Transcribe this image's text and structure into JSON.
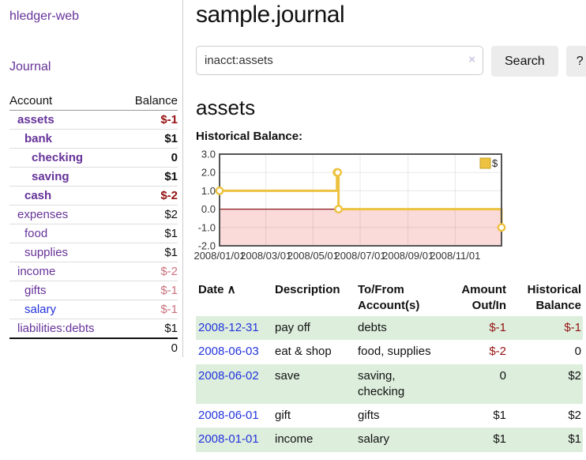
{
  "app_title": "hledger-web",
  "sidebar": {
    "journal_link": "Journal",
    "accounts": {
      "header_account": "Account",
      "header_balance": "Balance",
      "rows": [
        {
          "name": "assets",
          "indent": 0,
          "bold": true,
          "balance": "$-1",
          "balance_class": "neg",
          "link": "purple"
        },
        {
          "name": "bank",
          "indent": 1,
          "bold": true,
          "balance": "$1",
          "balance_class": "",
          "link": "purple"
        },
        {
          "name": "checking",
          "indent": 2,
          "bold": true,
          "balance": "0",
          "balance_class": "",
          "link": "purple"
        },
        {
          "name": "saving",
          "indent": 2,
          "bold": true,
          "balance": "$1",
          "balance_class": "",
          "link": "purple"
        },
        {
          "name": "cash",
          "indent": 1,
          "bold": true,
          "balance": "$-2",
          "balance_class": "neg",
          "link": "purple"
        },
        {
          "name": "expenses",
          "indent": 0,
          "bold": false,
          "balance": "$2",
          "balance_class": "",
          "link": "purple"
        },
        {
          "name": "food",
          "indent": 1,
          "bold": false,
          "balance": "$1",
          "balance_class": "",
          "link": "purple"
        },
        {
          "name": "supplies",
          "indent": 1,
          "bold": false,
          "balance": "$1",
          "balance_class": "",
          "link": "purple"
        },
        {
          "name": "income",
          "indent": 0,
          "bold": false,
          "balance": "$-2",
          "balance_class": "mneg",
          "link": "purple"
        },
        {
          "name": "gifts",
          "indent": 1,
          "bold": false,
          "balance": "$-1",
          "balance_class": "mneg",
          "link": "purple"
        },
        {
          "name": "salary",
          "indent": 1,
          "bold": false,
          "balance": "$-1",
          "balance_class": "mneg",
          "link": "blue"
        },
        {
          "name": "liabilities:debts",
          "indent": 0,
          "bold": false,
          "balance": "$1",
          "balance_class": "",
          "link": "purple"
        }
      ],
      "total": "0"
    }
  },
  "main": {
    "title": "sample.journal",
    "search": {
      "value": "inacct:assets",
      "clear_icon": "×",
      "button": "Search",
      "help": "?"
    },
    "heading": "assets",
    "chart_title": "Historical Balance:"
  },
  "chart_data": {
    "type": "line",
    "step": true,
    "title": "Historical Balance:",
    "series": [
      {
        "name": "$",
        "color": "#edc240",
        "points": [
          [
            "2008-01-01",
            1
          ],
          [
            "2008-06-01",
            2
          ],
          [
            "2008-06-02",
            2
          ],
          [
            "2008-06-03",
            0
          ],
          [
            "2008-12-31",
            -1
          ]
        ]
      }
    ],
    "xlim": [
      "2008-01-01",
      "2008-12-31"
    ],
    "ylim": [
      -2,
      3
    ],
    "y_ticks": [
      {
        "label": "3.0",
        "value": 3
      },
      {
        "label": "2.0",
        "value": 2
      },
      {
        "label": "1.0",
        "value": 1
      },
      {
        "label": "0.0",
        "value": 0
      },
      {
        "label": "-1.0",
        "value": -1
      },
      {
        "label": "-2.0",
        "value": -2
      }
    ],
    "x_ticks": [
      {
        "label": "2008/01/01",
        "date": "2008-01-01"
      },
      {
        "label": "2008/03/01",
        "date": "2008-03-01"
      },
      {
        "label": "2008/05/01",
        "date": "2008-05-01"
      },
      {
        "label": "2008/07/01",
        "date": "2008-07-01"
      },
      {
        "label": "2008/09/01",
        "date": "2008-09-01"
      },
      {
        "label": "2008/11/01",
        "date": "2008-11-01"
      }
    ],
    "legend": {
      "label": "$",
      "position": "top-right"
    },
    "negative_region_shaded": true,
    "grid": true
  },
  "register": {
    "headers": [
      {
        "line1": "Date",
        "line2": "",
        "align": "left",
        "sort_icon": "∧"
      },
      {
        "line1": "Description",
        "line2": "",
        "align": "left",
        "sort_icon": ""
      },
      {
        "line1": "To/From",
        "line2": "Account(s)",
        "align": "left",
        "sort_icon": ""
      },
      {
        "line1": "Amount",
        "line2": "Out/In",
        "align": "right",
        "sort_icon": ""
      },
      {
        "line1": "Historical",
        "line2": "Balance",
        "align": "right",
        "sort_icon": ""
      }
    ],
    "rows": [
      {
        "date": "2008-12-31",
        "description": "pay off",
        "account_lines": [
          "debts"
        ],
        "amount": "$-1",
        "amount_negative": true,
        "balance": "$-1",
        "balance_negative": true,
        "shaded": true
      },
      {
        "date": "2008-06-03",
        "description": "eat & shop",
        "account_lines": [
          "food, supplies"
        ],
        "amount": "$-2",
        "amount_negative": true,
        "balance": "0",
        "balance_negative": false,
        "shaded": false
      },
      {
        "date": "2008-06-02",
        "description": "save",
        "account_lines": [
          "saving,",
          "checking"
        ],
        "amount": "0",
        "amount_negative": false,
        "balance": "$2",
        "balance_negative": false,
        "shaded": true
      },
      {
        "date": "2008-06-01",
        "description": "gift",
        "account_lines": [
          "gifts"
        ],
        "amount": "$1",
        "amount_negative": false,
        "balance": "$2",
        "balance_negative": false,
        "shaded": false
      },
      {
        "date": "2008-01-01",
        "description": "income",
        "account_lines": [
          "salary"
        ],
        "amount": "$1",
        "amount_negative": false,
        "balance": "$1",
        "balance_negative": false,
        "shaded": true
      }
    ]
  },
  "colors": {
    "accent_purple": "#663399",
    "link_blue": "#2233dd",
    "negative": "#951111",
    "negative_muted": "#c9717d",
    "row_green": "#ddeedd",
    "chart_line": "#edc240",
    "chart_marker_fill": "#ffffff",
    "negative_shade_pink": "#fbdada",
    "zero_line_red": "#8b1a1a",
    "chart_border": "#545454"
  }
}
